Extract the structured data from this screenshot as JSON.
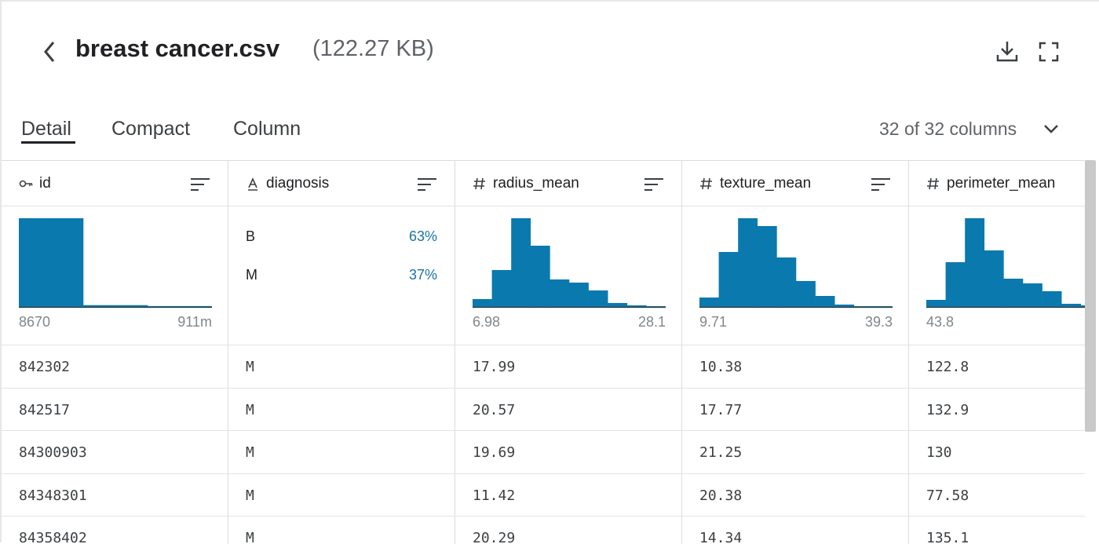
{
  "header": {
    "title": "breast cancer.csv",
    "size": "(122.27 KB)"
  },
  "tabs": [
    "Detail",
    "Compact",
    "Column"
  ],
  "column_count": "32 of 32 columns",
  "columns": [
    {
      "name": "id",
      "kind": "key",
      "histogram": [
        100,
        2,
        1
      ],
      "min": "8670",
      "max": "911m"
    },
    {
      "name": "diagnosis",
      "kind": "text",
      "categories": [
        {
          "label": "B",
          "share": "63%"
        },
        {
          "label": "M",
          "share": "37%"
        }
      ]
    },
    {
      "name": "radius_mean",
      "kind": "number",
      "histogram": [
        10,
        47,
        113,
        78,
        35,
        31,
        21,
        5,
        2,
        1
      ],
      "min": "6.98",
      "max": "28.1"
    },
    {
      "name": "texture_mean",
      "kind": "number",
      "histogram": [
        12,
        70,
        113,
        103,
        63,
        33,
        14,
        3,
        1,
        1
      ],
      "min": "9.71",
      "max": "39.3"
    },
    {
      "name": "perimeter_mean",
      "kind": "number",
      "histogram": [
        9,
        57,
        113,
        72,
        36,
        30,
        20,
        4,
        2,
        1
      ],
      "min": "43.8"
    }
  ],
  "rows": [
    [
      "842302",
      "M",
      "17.99",
      "10.38",
      "122.8"
    ],
    [
      "842517",
      "M",
      "20.57",
      "17.77",
      "132.9"
    ],
    [
      "84300903",
      "M",
      "19.69",
      "21.25",
      "130"
    ],
    [
      "84348301",
      "M",
      "11.42",
      "20.38",
      "77.58"
    ],
    [
      "84358402",
      "M",
      "20.29",
      "14.34",
      "135.1"
    ]
  ]
}
